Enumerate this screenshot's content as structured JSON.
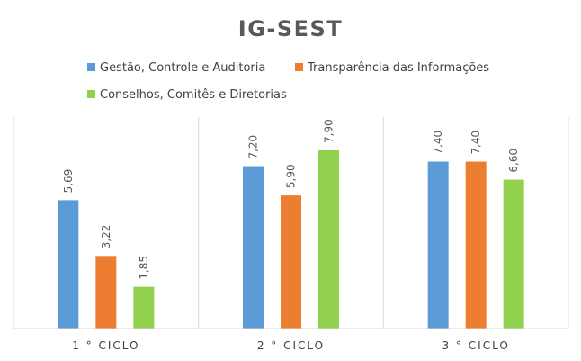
{
  "chart_data": {
    "type": "bar",
    "title": "IG-SEST",
    "categories": [
      "1 ° CICLO",
      "2 ° CICLO",
      "3 ° CICLO"
    ],
    "series": [
      {
        "name": "Gestão, Controle e Auditoria",
        "values": [
          5.69,
          7.2,
          7.4
        ],
        "labels": [
          "5,69",
          "7,20",
          "7,40"
        ],
        "color": "#5B9BD5"
      },
      {
        "name": "Transparência das Informações",
        "values": [
          3.22,
          5.9,
          7.4
        ],
        "labels": [
          "3,22",
          "5,90",
          "7,40"
        ],
        "color": "#ED7D31"
      },
      {
        "name": "Conselhos, Comitês e Diretorias",
        "values": [
          1.85,
          7.9,
          6.6
        ],
        "labels": [
          "1,85",
          "7,90",
          "6,60"
        ],
        "color": "#92D050"
      }
    ],
    "xlabel": "",
    "ylabel": "",
    "ylim": [
      0,
      9
    ],
    "legend_position": "top",
    "grid": "vertical-category-separators"
  }
}
